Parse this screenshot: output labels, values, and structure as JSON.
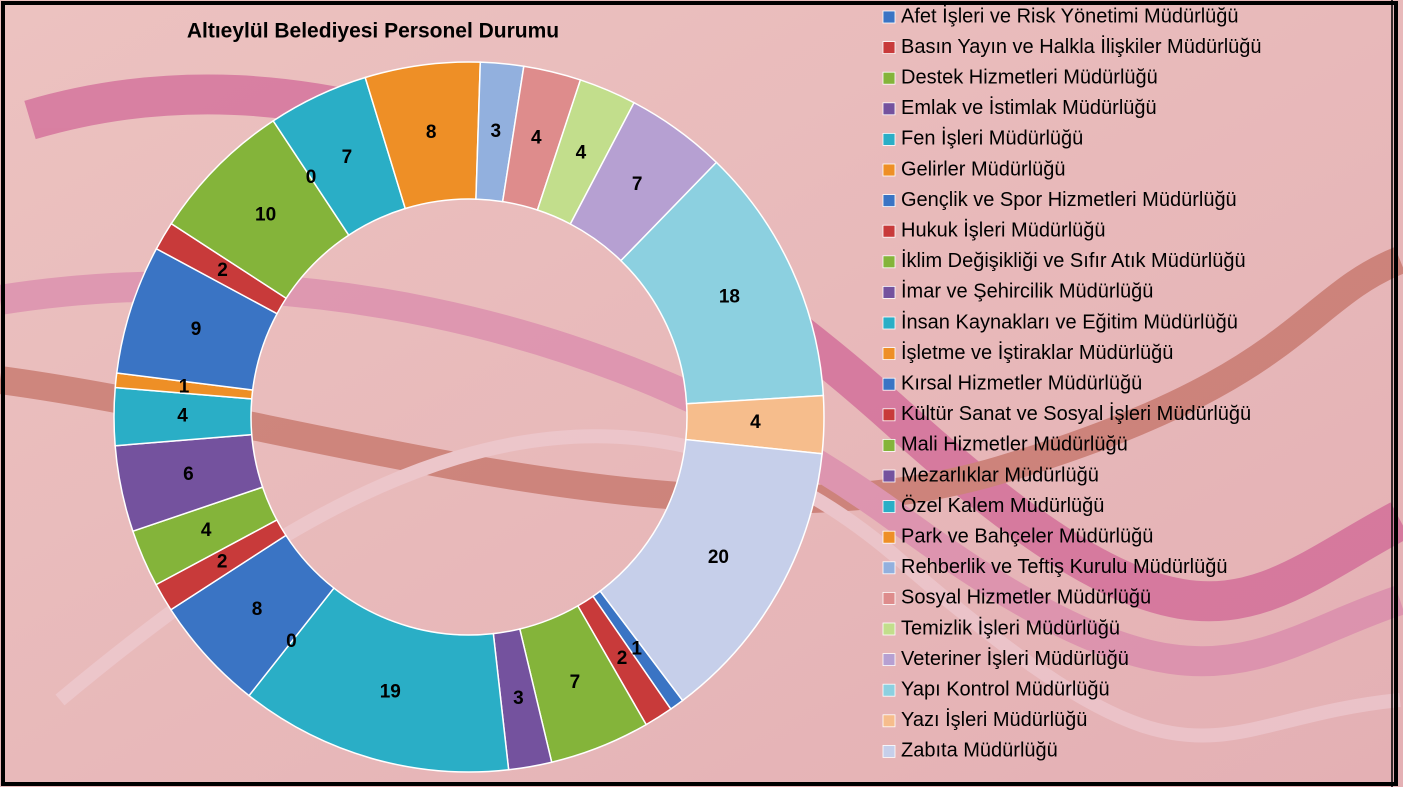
{
  "chart_data": {
    "type": "doughnut",
    "title": "Altıeylül Belediyesi Personel Durumu",
    "categories": [
      "Afet İşleri ve Risk Yönetimi Müdürlüğü",
      "Basın Yayın ve Halkla İlişkiler Müdürlüğü",
      "Destek Hizmetleri Müdürlüğü",
      "Emlak ve İstimlak Müdürlüğü",
      "Fen İşleri Müdürlüğü",
      "Gelirler Müdürlüğü",
      "Gençlik ve Spor Hizmetleri Müdürlüğü",
      "Hukuk İşleri Müdürlüğü",
      "İklim Değişikliği ve Sıfır Atık Müdürlüğü",
      "İmar ve Şehircilik Müdürlüğü",
      "İnsan Kaynakları ve Eğitim Müdürlüğü",
      "İşletme ve İştiraklar Müdürlüğü",
      "Kırsal Hizmetler Müdürlüğü",
      "Kültür Sanat ve Sosyal İşleri Müdürlüğü",
      "Mali Hizmetler Müdürlüğü",
      "Mezarlıklar Müdürlüğü",
      "Özel Kalem Müdürlüğü",
      "Park ve Bahçeler Müdürlüğü",
      "Rehberlik ve Teftiş Kurulu Müdürlüğü",
      "Sosyal Hizmetler Müdürlüğü",
      "Temizlik İşleri Müdürlüğü",
      "Veteriner İşleri Müdürlüğü",
      "Yapı Kontrol Müdürlüğü",
      "Yazı İşleri Müdürlüğü",
      "Zabıta Müdürlüğü"
    ],
    "values": [
      1,
      2,
      7,
      3,
      19,
      0,
      8,
      2,
      4,
      6,
      4,
      1,
      9,
      2,
      10,
      0,
      7,
      8,
      3,
      4,
      4,
      7,
      18,
      4,
      20
    ],
    "colors": [
      "#3a74c4",
      "#c83a3a",
      "#84b43a",
      "#74529e",
      "#2aaec6",
      "#ee8f26",
      "#3a74c4",
      "#c83a3a",
      "#84b43a",
      "#74529e",
      "#2aaec6",
      "#ee8f26",
      "#3a74c4",
      "#c83a3a",
      "#84b43a",
      "#74529e",
      "#2aaec6",
      "#ee8f26",
      "#92b0de",
      "#de8c8c",
      "#c2de8c",
      "#b6a0d2",
      "#8cd0e0",
      "#f6bd8c",
      "#c6cfea"
    ],
    "legend": "right"
  }
}
